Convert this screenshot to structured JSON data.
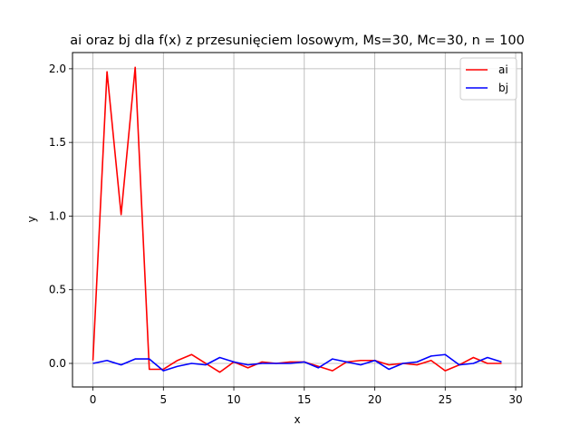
{
  "chart_data": {
    "type": "line",
    "title": "ai oraz bj dla f(x) z przesunięciem losowym, Ms=30, Mc=30, n = 100",
    "xlabel": "x",
    "ylabel": "y",
    "xlim": [
      -1.45,
      30.45
    ],
    "ylim": [
      -0.16,
      2.11
    ],
    "xticks": [
      0,
      5,
      10,
      15,
      20,
      25,
      30
    ],
    "yticks": [
      0.0,
      0.5,
      1.0,
      1.5,
      2.0
    ],
    "xtick_labels": [
      "0",
      "5",
      "10",
      "15",
      "20",
      "25",
      "30"
    ],
    "ytick_labels": [
      "0.0",
      "0.5",
      "1.0",
      "1.5",
      "2.0"
    ],
    "grid": true,
    "legend_position": "top-right",
    "x": [
      0,
      1,
      2,
      3,
      4,
      5,
      6,
      7,
      8,
      9,
      10,
      11,
      12,
      13,
      14,
      15,
      16,
      17,
      18,
      19,
      20,
      21,
      22,
      23,
      24,
      25,
      26,
      27,
      28,
      29
    ],
    "series": [
      {
        "name": "ai",
        "color": "#ff0000",
        "values": [
          0.02,
          1.98,
          1.01,
          2.01,
          -0.04,
          -0.04,
          0.02,
          0.06,
          0.0,
          -0.06,
          0.01,
          -0.03,
          0.01,
          0.0,
          0.01,
          0.01,
          -0.02,
          -0.05,
          0.01,
          0.02,
          0.02,
          -0.01,
          0.0,
          -0.01,
          0.02,
          -0.05,
          -0.01,
          0.04,
          0.0,
          0.0
        ]
      },
      {
        "name": "bj",
        "color": "#0000ff",
        "values": [
          0.0,
          0.02,
          -0.01,
          0.03,
          0.03,
          -0.05,
          -0.02,
          0.0,
          -0.01,
          0.04,
          0.01,
          -0.01,
          0.0,
          0.0,
          0.0,
          0.01,
          -0.03,
          0.03,
          0.01,
          -0.01,
          0.02,
          -0.04,
          0.0,
          0.01,
          0.05,
          0.06,
          -0.01,
          0.0,
          0.04,
          0.01
        ]
      }
    ]
  }
}
